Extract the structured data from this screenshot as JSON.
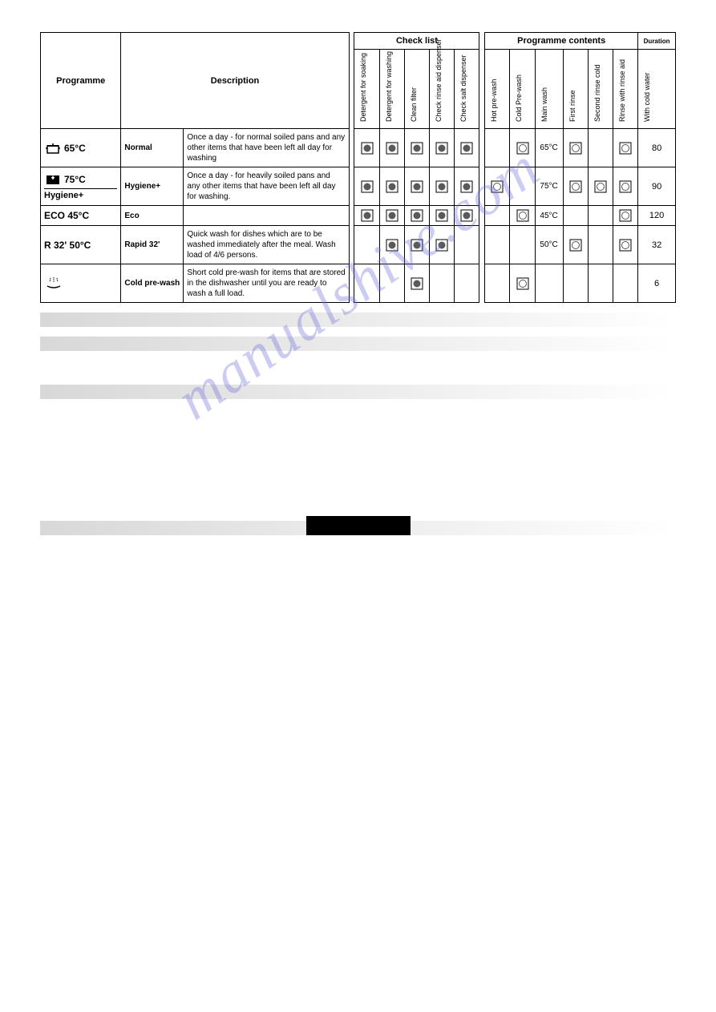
{
  "watermark": "manualshive.com",
  "headers": {
    "programme": "Programme",
    "description": "Description",
    "checklist": "Check list",
    "prog_contents": "Programme contents",
    "duration": "Duration",
    "checklist_cols": [
      "Detergent for soaking",
      "Detergent for washing",
      "Clean filter",
      "Check rinse aid dispenser",
      "Check salt dispenser"
    ],
    "prog_cols": [
      "Hot pre-wash",
      "Cold Pre-wash",
      "Main wash",
      "First rinse",
      "Second rinse cold",
      "Rinse with rinse aid",
      "With cold water"
    ]
  },
  "rows": [
    {
      "icon": "pot",
      "prog_label": "65°C",
      "prog_sub": "",
      "name": "Normal",
      "desc": "Once a day - for normal soiled pans and any other items that have been left all day for washing",
      "check": [
        "filled",
        "filled",
        "filled",
        "filled",
        "filled"
      ],
      "prog": [
        "",
        "open",
        "65°C",
        "open",
        "",
        "open",
        "80"
      ]
    },
    {
      "icon": "pot-plus",
      "prog_label": "75°C",
      "prog_sub": "Hygiene+",
      "name": "Hygiene+",
      "desc": "Once a day - for heavily soiled pans and any other items that have been left all day for washing.",
      "check": [
        "filled",
        "filled",
        "filled",
        "filled",
        "filled"
      ],
      "prog": [
        "open",
        "",
        "75°C",
        "open",
        "open",
        "open",
        "90"
      ]
    },
    {
      "icon": "eco",
      "prog_label": "ECO 45°C",
      "prog_sub": "",
      "name": "Eco",
      "desc": "",
      "check": [
        "filled",
        "filled",
        "filled",
        "filled",
        "filled"
      ],
      "prog": [
        "",
        "open",
        "45°C",
        "",
        "",
        "open",
        "120"
      ]
    },
    {
      "icon": "rapid",
      "prog_label": "R 32' 50°C",
      "prog_sub": "",
      "name": "Rapid 32'",
      "desc": "Quick wash for dishes which are to be washed immediately after the meal. Wash load of 4/6 persons.",
      "check": [
        "",
        "filled",
        "filled",
        "filled",
        ""
      ],
      "prog": [
        "",
        "",
        "50°C",
        "open",
        "",
        "open",
        "32"
      ]
    },
    {
      "icon": "prewash",
      "prog_label": "",
      "prog_sub": "",
      "name": "Cold pre-wash",
      "desc": "Short cold pre-wash for items that are stored in the dishwasher until you are ready to wash a full load.",
      "check": [
        "",
        "",
        "filled",
        "",
        ""
      ],
      "prog": [
        "",
        "open",
        "",
        "",
        "",
        "",
        "6"
      ]
    }
  ],
  "colors": {
    "border": "#000000",
    "text": "#000000",
    "mark_fill": "#5a5a5a",
    "watermark": "rgba(110,110,220,0.35)",
    "gray_bar_from": "#d8d8d8",
    "gray_bar_to": "#ffffff"
  }
}
